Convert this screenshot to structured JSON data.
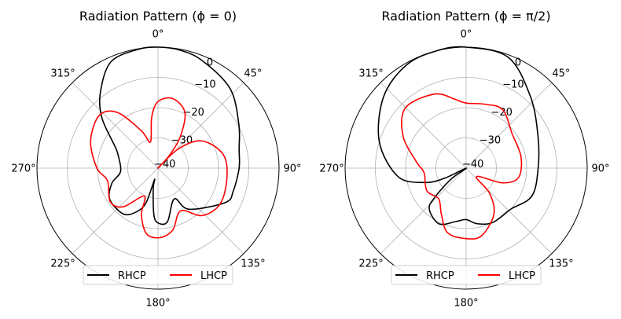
{
  "chart_data": [
    {
      "type": "polar-line",
      "title": "Radiation Pattern (ϕ = 0)",
      "theta_direction": "clockwise",
      "theta_zero": "top",
      "angle_ticks": [
        "0°",
        "45°",
        "90°",
        "135°",
        "180°",
        "225°",
        "270°",
        "315°"
      ],
      "radial_ticks": [
        "0",
        "−10",
        "−20",
        "−30",
        "−40"
      ],
      "rlim": [
        -40,
        0
      ],
      "grid": true,
      "legend": "bottom-center",
      "series": [
        {
          "name": "RHCP",
          "color": "#000000",
          "theta_deg": [
            0,
            10,
            22,
            42,
            61,
            77,
            90,
            107,
            117,
            143,
            152,
            170,
            180,
            185,
            193,
            197,
            199,
            206,
            217,
            237,
            252,
            265,
            289,
            297,
            312,
            323,
            336,
            350
          ],
          "r_db": [
            0,
            -0.3,
            -1.5,
            -4.5,
            -9.5,
            -12.5,
            -13.2,
            -14,
            -15,
            -23,
            -28.5,
            -22,
            -21.9,
            -24.5,
            -33,
            -36,
            -28,
            -24,
            -21,
            -21,
            -24,
            -27.6,
            -26,
            -24,
            -15,
            -8.4,
            -1.6,
            -0.2
          ]
        },
        {
          "name": "LHCP",
          "color": "#ff0000",
          "theta_deg": [
            0,
            12,
            25.6,
            35,
            41.6,
            45,
            46.5,
            58,
            78,
            98,
            120,
            137,
            152,
            166.5,
            178.5,
            190,
            199.6,
            206,
            222,
            235,
            256,
            270,
            292,
            312,
            324,
            336,
            344,
            353
          ],
          "r_db": [
            -18,
            -16.5,
            -19.5,
            -27,
            -34,
            -40,
            -30.8,
            -23,
            -18,
            -17,
            -16.3,
            -18.6,
            -24,
            -19,
            -17,
            -18,
            -23.7,
            -29.7,
            -22.8,
            -20.7,
            -22.8,
            -19.8,
            -16,
            -13.9,
            -17.3,
            -26.5,
            -31,
            -23
          ]
        }
      ]
    },
    {
      "type": "polar-line",
      "title": "Radiation Pattern (ϕ = π/2)",
      "theta_direction": "clockwise",
      "theta_zero": "top",
      "angle_ticks": [
        "0°",
        "45°",
        "90°",
        "135°",
        "180°",
        "225°",
        "270°",
        "315°"
      ],
      "radial_ticks": [
        "0",
        "−10",
        "−20",
        "−30",
        "−40"
      ],
      "rlim": [
        -40,
        0
      ],
      "grid": true,
      "legend": "bottom-center",
      "series": [
        {
          "name": "RHCP",
          "color": "#000000",
          "theta_deg": [
            0,
            20.7,
            41.9,
            66,
            90,
            113,
            133,
            154,
            169,
            180,
            191,
            206,
            222,
            227,
            234,
            240,
            245,
            251,
            263,
            287,
            311,
            330,
            346
          ],
          "r_db": [
            0,
            -0.8,
            -8.2,
            -14,
            -16.2,
            -16.4,
            -20,
            -20,
            -21.3,
            -23,
            -22,
            -19.5,
            -21.8,
            -25.8,
            -34,
            -40,
            -32,
            -25.4,
            -17.3,
            -10,
            -3.9,
            -0.6,
            0
          ]
        },
        {
          "name": "LHCP",
          "color": "#ff0000",
          "theta_deg": [
            0,
            16,
            32,
            53,
            78,
            100,
            112,
            129,
            137,
            149,
            167,
            180,
            196,
            208,
            222,
            240,
            264,
            277,
            297,
            315,
            337,
            351
          ],
          "r_db": [
            -18.5,
            -18,
            -17.2,
            -21,
            -21.5,
            -22.4,
            -27,
            -35.6,
            -28.6,
            -22.2,
            -17.1,
            -16.7,
            -17.8,
            -22.6,
            -26.4,
            -25,
            -26,
            -23.5,
            -16.6,
            -11.7,
            -13.4,
            -17
          ]
        }
      ]
    }
  ]
}
